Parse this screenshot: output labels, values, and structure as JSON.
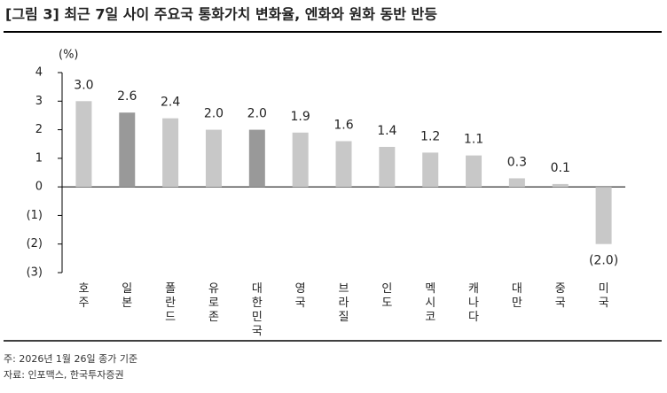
{
  "chart_data": {
    "type": "bar",
    "title": "[그림 3] 최근 7일 사이 주요국 통화가치 변화율, 엔화와 원화 동반 반등",
    "y_label": "(%)",
    "categories": [
      "호주",
      "일본",
      "폴란드",
      "유로존",
      "대한민국",
      "영국",
      "브라질",
      "인도",
      "멕시코",
      "캐나다",
      "대만",
      "중국",
      "미국"
    ],
    "values": [
      3.0,
      2.6,
      2.4,
      2.0,
      2.0,
      1.9,
      1.6,
      1.4,
      1.2,
      1.1,
      0.3,
      0.1,
      -2.0
    ],
    "value_labels": [
      "3.0",
      "2.6",
      "2.4",
      "2.0",
      "2.0",
      "1.9",
      "1.6",
      "1.4",
      "1.2",
      "1.1",
      "0.3",
      "0.1",
      "(2.0)"
    ],
    "colors": [
      "#c8c8c8",
      "#999999",
      "#c8c8c8",
      "#c8c8c8",
      "#999999",
      "#c8c8c8",
      "#c8c8c8",
      "#c8c8c8",
      "#c8c8c8",
      "#c8c8c8",
      "#c8c8c8",
      "#c8c8c8",
      "#c8c8c8"
    ],
    "ylim": [
      -3,
      4
    ],
    "yticks": [
      {
        "value": -3,
        "label": "(3)"
      },
      {
        "value": -2,
        "label": "(2)"
      },
      {
        "value": -1,
        "label": "(1)"
      },
      0,
      1,
      2,
      3,
      4
    ],
    "notes": [
      "주: 2026년 1월 26일 종가 기준",
      "자료: 인포맥스, 한국투자증권"
    ]
  }
}
